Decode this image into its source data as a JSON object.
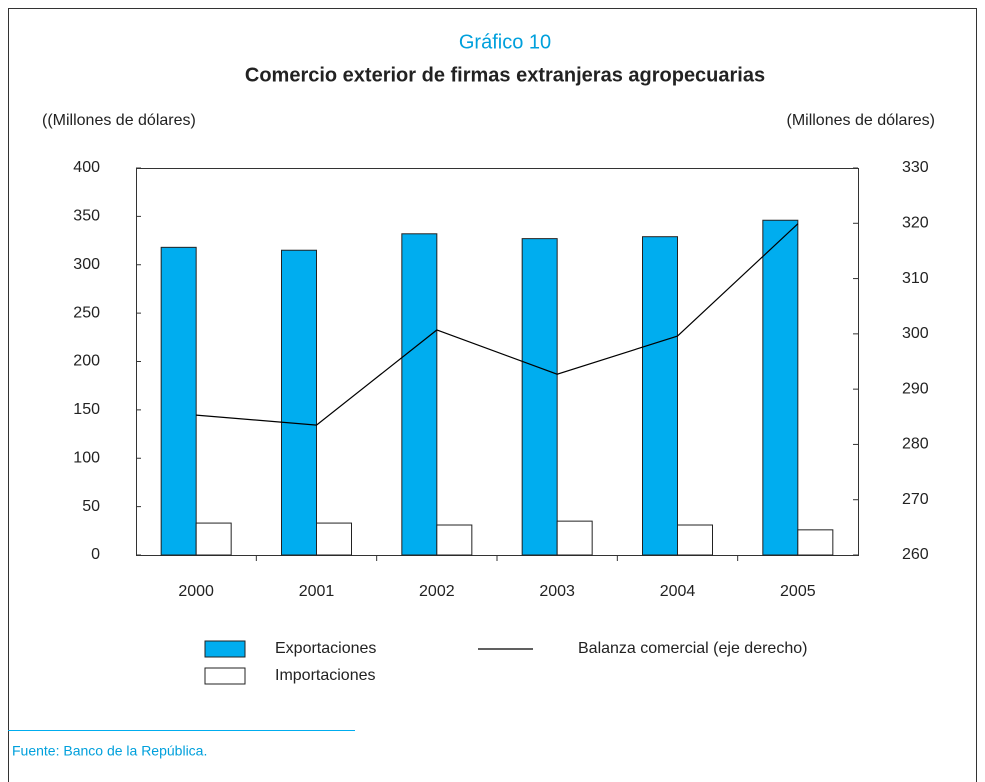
{
  "chart_data": {
    "type": "bar",
    "label": "Gráfico 10",
    "title": "Comercio exterior de firmas extranjeras agropecuarias",
    "y_label": "((Millones de dólares)",
    "y2_label": "(Millones de dólares)",
    "categories": [
      "2000",
      "2001",
      "2002",
      "2003",
      "2004",
      "2005"
    ],
    "series": [
      {
        "name": "Exportaciones",
        "type": "bar",
        "color": "#00adef",
        "values": [
          318,
          315,
          332,
          327,
          329,
          346
        ]
      },
      {
        "name": "Importaciones",
        "type": "bar",
        "color": "#ffffff",
        "values": [
          33,
          33,
          31,
          35,
          31,
          26
        ]
      },
      {
        "name": "Balanza comercial (eje derecho)",
        "type": "line",
        "axis": "y2",
        "color": "#000000",
        "values": [
          285.3,
          283.5,
          300.7,
          292.7,
          299.6,
          319.9
        ]
      }
    ],
    "ylim": [
      0,
      400
    ],
    "yticks": [
      0,
      50,
      100,
      150,
      200,
      250,
      300,
      350,
      400
    ],
    "y2lim": [
      260,
      330
    ],
    "y2ticks": [
      260,
      270,
      280,
      290,
      300,
      310,
      320,
      330
    ],
    "source": "Fuente: Banco de la República."
  }
}
